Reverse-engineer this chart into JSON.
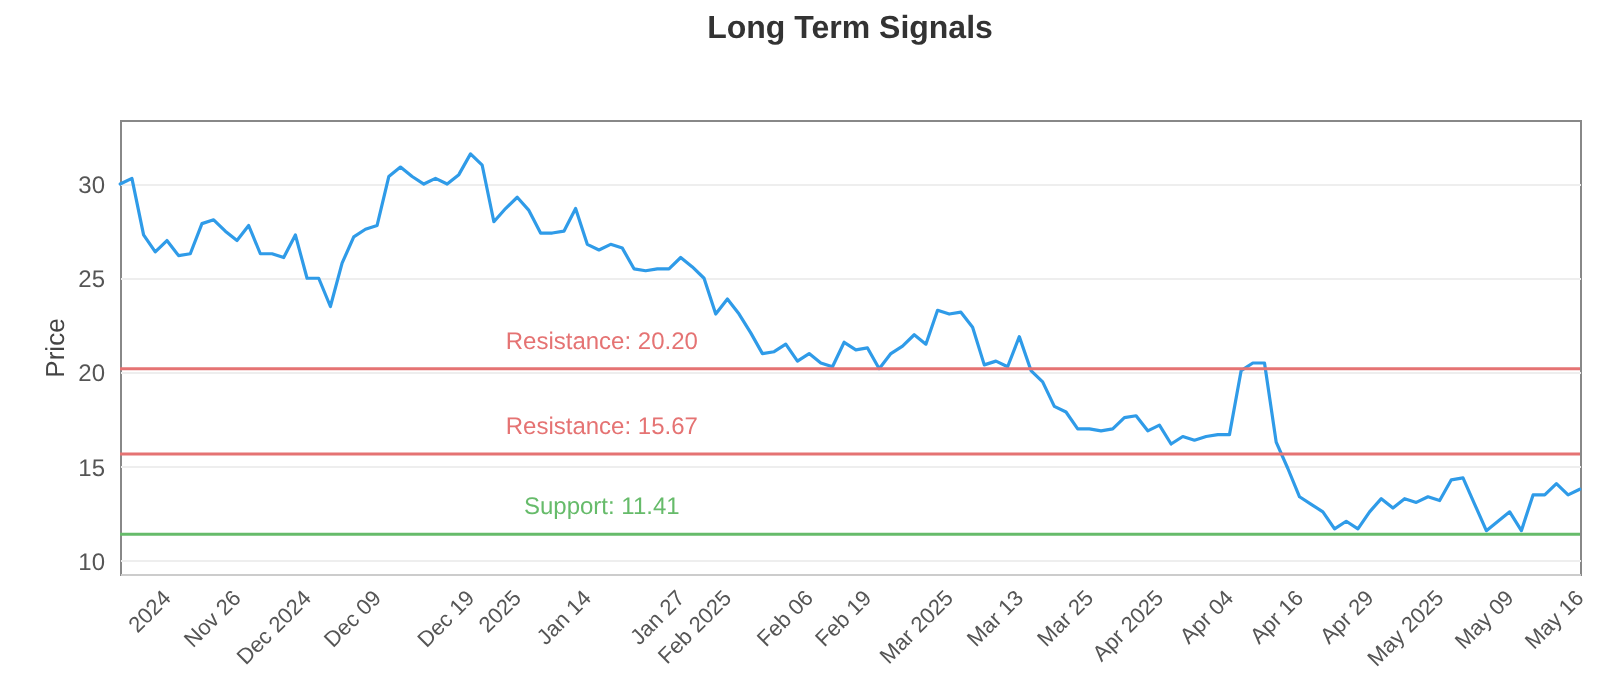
{
  "chart_data": {
    "type": "line",
    "title": "Long Term Signals",
    "ylabel": "Price",
    "categories": [
      null,
      null,
      null,
      null,
      "2024",
      null,
      null,
      null,
      null,
      null,
      "Nov 26",
      null,
      null,
      null,
      null,
      null,
      "Dec 2024",
      null,
      null,
      null,
      null,
      null,
      "Dec 09",
      null,
      null,
      null,
      null,
      null,
      null,
      null,
      "Dec 19",
      null,
      null,
      null,
      "2025",
      null,
      null,
      null,
      null,
      null,
      "Jan 14",
      null,
      null,
      null,
      null,
      null,
      null,
      null,
      "Jan 27",
      null,
      null,
      null,
      "Feb 2025",
      null,
      null,
      null,
      null,
      null,
      null,
      "Feb 06",
      null,
      null,
      null,
      null,
      "Feb 19",
      null,
      null,
      null,
      null,
      null,
      null,
      "Mar 2025",
      null,
      null,
      null,
      null,
      null,
      "Mar 13",
      null,
      null,
      null,
      null,
      null,
      "Mar 25",
      null,
      null,
      null,
      null,
      null,
      "Apr 2025",
      null,
      null,
      null,
      null,
      null,
      "Apr 04",
      null,
      null,
      null,
      null,
      null,
      "Apr 16",
      null,
      null,
      null,
      null,
      null,
      "Apr 29",
      null,
      null,
      null,
      null,
      null,
      "May 2025",
      null,
      null,
      null,
      null,
      null,
      "May 09",
      null,
      null,
      null,
      null,
      null,
      "May 16"
    ],
    "series": [
      {
        "color": "#2f9be8",
        "values": [
          30.0,
          30.3,
          27.3,
          26.4,
          27.0,
          26.2,
          26.3,
          27.9,
          28.1,
          27.5,
          27.0,
          27.8,
          26.3,
          26.3,
          26.1,
          27.3,
          25.0,
          25.0,
          23.5,
          25.8,
          27.2,
          27.6,
          27.8,
          30.4,
          30.9,
          30.4,
          30.0,
          30.3,
          30.0,
          30.5,
          31.6,
          31.0,
          28.0,
          28.7,
          29.3,
          28.6,
          27.4,
          27.4,
          27.5,
          28.7,
          26.8,
          26.5,
          26.8,
          26.6,
          25.5,
          25.4,
          25.5,
          25.5,
          26.1,
          25.6,
          25.0,
          23.1,
          23.9,
          23.1,
          22.1,
          21.0,
          21.1,
          21.5,
          20.6,
          21.0,
          20.5,
          20.3,
          21.6,
          21.2,
          21.3,
          20.2,
          21.0,
          21.4,
          22.0,
          21.5,
          23.3,
          23.1,
          23.2,
          22.4,
          20.4,
          20.6,
          20.3,
          21.9,
          20.1,
          19.5,
          18.2,
          17.9,
          17.0,
          17.0,
          16.9,
          17.0,
          17.6,
          17.7,
          16.9,
          17.2,
          16.2,
          16.6,
          16.4,
          16.6,
          16.7,
          16.7,
          20.1,
          20.5,
          20.5,
          16.3,
          14.9,
          13.4,
          13.0,
          12.6,
          11.7,
          12.1,
          11.7,
          12.6,
          13.3,
          12.8,
          13.3,
          13.1,
          13.4,
          13.2,
          14.3,
          14.4,
          13.0,
          11.6,
          12.1,
          12.6,
          11.6,
          13.5,
          13.5,
          14.1,
          13.5,
          13.8
        ]
      }
    ],
    "ylim": [
      9.3,
      33.4
    ],
    "yticks": [
      10,
      15,
      20,
      25,
      30
    ],
    "grid": "y",
    "marker": "none",
    "line_style": "solid",
    "ref_lines": [
      {
        "axis": "y",
        "value": 20.2,
        "label": "Resistance: 20.20",
        "color": "#e57373"
      },
      {
        "axis": "y",
        "value": 15.67,
        "label": "Resistance: 15.67",
        "color": "#e57373"
      },
      {
        "axis": "y",
        "value": 11.41,
        "label": "Support: 11.41",
        "color": "#66bb6a"
      }
    ]
  }
}
